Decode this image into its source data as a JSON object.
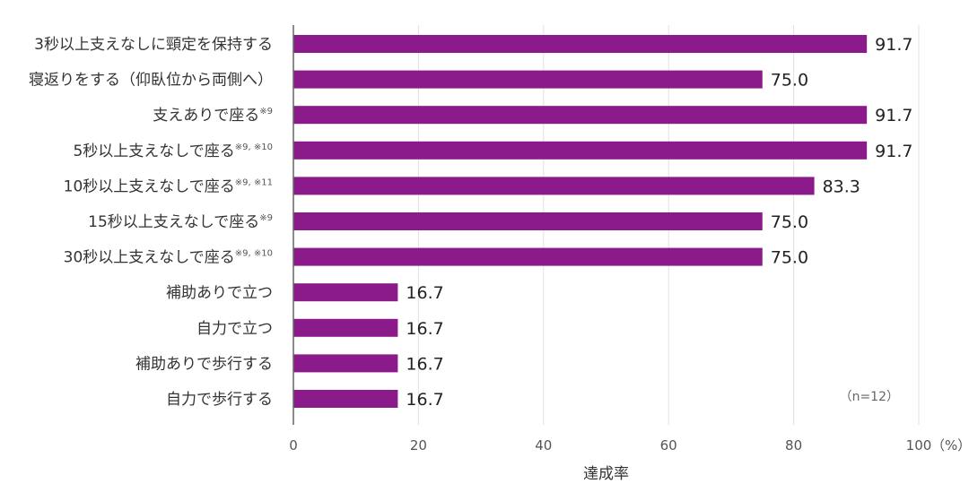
{
  "chart_data": {
    "type": "bar",
    "orientation": "horizontal",
    "categories": [
      "3秒以上支えなしに頸定を保持する",
      "寝返りをする（仰臥位から両側へ）",
      "支えありで座る",
      "5秒以上支えなしで座る",
      "10秒以上支えなしで座る",
      "15秒以上支えなしで座る",
      "30秒以上支えなしで座る",
      "補助ありで立つ",
      "自力で立つ",
      "補助ありで歩行する",
      "自力で歩行する"
    ],
    "footnotes": [
      "",
      "",
      "※9",
      "※9, ※10",
      "※9, ※11",
      "※9",
      "※9, ※10",
      "",
      "",
      "",
      ""
    ],
    "values": [
      91.7,
      75.0,
      91.7,
      91.7,
      83.3,
      75.0,
      75.0,
      16.7,
      16.7,
      16.7,
      16.7
    ],
    "value_labels": [
      "91.7",
      "75.0",
      "91.7",
      "91.7",
      "83.3",
      "75.0",
      "75.0",
      "16.7",
      "16.7",
      "16.7",
      "16.7"
    ],
    "xlim": [
      0,
      100
    ],
    "xticks": [
      0,
      20,
      40,
      60,
      80,
      100
    ],
    "tick_labels": [
      "0",
      "20",
      "40",
      "60",
      "80",
      "100"
    ],
    "unit": "（%）",
    "xlabel": "達成率",
    "annotation": "（n=12）",
    "grid": true,
    "bar_color": "#8b1a8a"
  }
}
